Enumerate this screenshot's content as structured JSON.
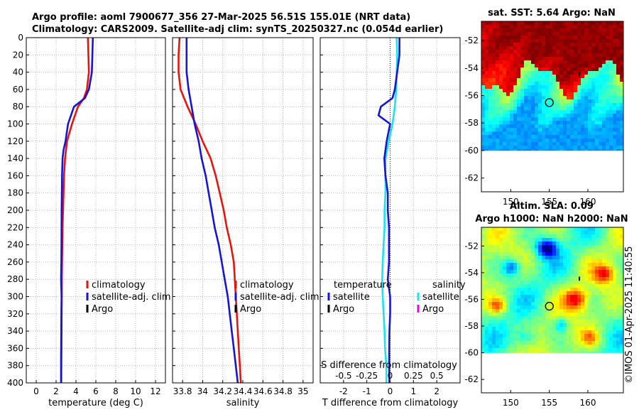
{
  "header": {
    "title_line1": "Argo profile: aoml 7900677_356 27-Mar-2025 56.51S 155.01E (NRT data)",
    "title_line2": "Climatology: CARS2009. Satellite-adj clim: synTS_20250327.nc (0.054d earlier)"
  },
  "watermark": "©IMOS 01-Apr-2025 11:40:55",
  "colors": {
    "climatology": "#e8140c",
    "satellite": "#1414dc",
    "argo": "#000000",
    "s_satellite": "#18e4f0",
    "s_argo": "#ee00ee",
    "grid": "#b4b4cc"
  },
  "chart_data": [
    {
      "id": "temperature",
      "type": "line",
      "xlabel": "temperature (deg C)",
      "xlim": [
        -1,
        13
      ],
      "ylim": [
        0,
        400
      ],
      "x_ticks": [
        "0",
        "2",
        "4",
        "6",
        "8",
        "10",
        "12"
      ],
      "y_ticks": [
        "0",
        "20",
        "40",
        "60",
        "80",
        "100",
        "120",
        "140",
        "160",
        "180",
        "200",
        "220",
        "240",
        "260",
        "280",
        "300",
        "320",
        "340",
        "360",
        "380",
        "400"
      ],
      "legend": [
        "climatology",
        "satellite-adj. clim",
        "Argo"
      ],
      "series": [
        {
          "name": "climatology",
          "depth": [
            0,
            20,
            40,
            60,
            70,
            80,
            100,
            120,
            140,
            160,
            180,
            200,
            220,
            240,
            260,
            280,
            300,
            320,
            340,
            360,
            380,
            400
          ],
          "values": [
            5.2,
            5.25,
            5.3,
            5.1,
            4.8,
            4.2,
            3.6,
            3.1,
            2.9,
            2.8,
            2.75,
            2.7,
            2.65,
            2.62,
            2.6,
            2.58,
            2.57,
            2.56,
            2.55,
            2.54,
            2.53,
            2.52
          ]
        },
        {
          "name": "satellite-adj. clim",
          "depth": [
            0,
            20,
            40,
            60,
            70,
            80,
            100,
            120,
            130,
            140,
            160,
            180,
            200,
            220,
            240,
            260,
            280,
            300,
            320,
            340,
            360,
            380,
            400
          ],
          "values": [
            5.7,
            5.65,
            5.6,
            5.3,
            4.9,
            3.8,
            3.2,
            2.95,
            2.75,
            2.65,
            2.6,
            2.58,
            2.56,
            2.55,
            2.54,
            2.53,
            2.5,
            2.55,
            2.53,
            2.52,
            2.51,
            2.5,
            2.5
          ]
        }
      ]
    },
    {
      "id": "salinity",
      "type": "line",
      "xlabel": "salinity",
      "xlim": [
        33.7,
        35.1
      ],
      "ylim": [
        0,
        400
      ],
      "x_ticks": [
        "33.8",
        "34",
        "34.2",
        "34.4",
        "34.6",
        "34.8",
        "35"
      ],
      "x_tick_values": [
        33.8,
        34.0,
        34.2,
        34.4,
        34.6,
        34.8,
        35.0
      ],
      "legend": [
        "climatology",
        "satellite-adj. clim",
        "Argo"
      ],
      "series": [
        {
          "name": "climatology",
          "depth": [
            0,
            20,
            40,
            60,
            80,
            100,
            120,
            140,
            160,
            180,
            200,
            220,
            240,
            260,
            280,
            300,
            320,
            340,
            360,
            380,
            400
          ],
          "values": [
            33.77,
            33.76,
            33.76,
            33.78,
            33.85,
            33.93,
            34.0,
            34.08,
            34.13,
            34.17,
            34.21,
            34.24,
            34.28,
            34.31,
            34.32,
            34.33,
            34.34,
            34.35,
            34.36,
            34.37,
            34.38
          ]
        },
        {
          "name": "satellite-adj. clim",
          "depth": [
            0,
            20,
            40,
            60,
            80,
            100,
            120,
            140,
            160,
            180,
            200,
            220,
            240,
            260,
            280,
            300,
            320,
            340,
            360,
            380,
            400
          ],
          "values": [
            33.84,
            33.84,
            33.84,
            33.86,
            33.89,
            33.92,
            33.96,
            33.99,
            34.03,
            34.06,
            34.09,
            34.12,
            34.16,
            34.19,
            34.22,
            34.25,
            34.27,
            34.29,
            34.31,
            34.33,
            34.35
          ]
        }
      ]
    },
    {
      "id": "difference",
      "type": "line",
      "xlabel": "T difference from climatology",
      "top_axis_label": "S difference from climatology",
      "xlim": [
        -3,
        3
      ],
      "ylim": [
        0,
        400
      ],
      "x_ticks": [
        "-2",
        "-1",
        "0",
        "1",
        "2"
      ],
      "x_tick_values": [
        -2,
        -1,
        0,
        1,
        2
      ],
      "top_ticks": [
        "-0.5",
        "-0.25",
        "0",
        "0.25",
        "0.5"
      ],
      "top_tick_values": [
        -0.5,
        -0.25,
        0,
        0.25,
        0.5
      ],
      "legend_temperature_title": "temperature",
      "legend_salinity_title": "salinity",
      "legend_temperature": [
        "satellite",
        "Argo"
      ],
      "legend_salinity": [
        "satellite",
        "Argo"
      ],
      "series": [
        {
          "name": "T satellite",
          "depth": [
            0,
            20,
            40,
            60,
            70,
            80,
            90,
            100,
            120,
            140,
            160,
            180,
            200,
            220,
            240,
            260,
            280,
            300,
            320,
            340,
            360,
            380,
            400
          ],
          "values": [
            0.4,
            0.4,
            0.3,
            0.2,
            0.1,
            -0.4,
            -0.5,
            0.0,
            -0.15,
            -0.25,
            -0.2,
            -0.1,
            -0.1,
            -0.05,
            -0.05,
            -0.05,
            -0.1,
            0.0,
            0.0,
            -0.03,
            -0.04,
            -0.04,
            -0.03
          ]
        },
        {
          "name": "S satellite",
          "depth": [
            0,
            20,
            40,
            60,
            80,
            100,
            120,
            140,
            160,
            180,
            200,
            220,
            240,
            260,
            280,
            300,
            320,
            340,
            360,
            380,
            400
          ],
          "values": [
            0.07,
            0.075,
            0.07,
            0.065,
            0.05,
            0.025,
            -0.015,
            -0.05,
            -0.05,
            -0.05,
            -0.06,
            -0.06,
            -0.07,
            -0.08,
            -0.085,
            -0.08,
            -0.07,
            -0.06,
            -0.055,
            -0.04,
            -0.04
          ]
        }
      ]
    },
    {
      "id": "sst_map",
      "type": "heatmap",
      "title": "sat. SST: 5.64 Argo: NaN",
      "x_ticks": [
        "150",
        "155",
        "160"
      ],
      "x_tick_values": [
        150,
        155,
        160
      ],
      "y_ticks": [
        "-52",
        "-54",
        "-56",
        "-58",
        "-60",
        "-62"
      ],
      "y_tick_values": [
        -52,
        -54,
        -56,
        -58,
        -60,
        -62
      ],
      "xlim": [
        146.2,
        164.6
      ],
      "ylim": [
        -63,
        -50.6
      ],
      "data_bottom": -60,
      "float_position": [
        155.01,
        -56.51
      ],
      "float_track": [
        [
          158.9,
          -54.3
        ],
        [
          158.9,
          -54.6
        ]
      ]
    },
    {
      "id": "sla_map",
      "type": "heatmap",
      "title_line1": "Altim. SLA: 0.09",
      "title_line2": "Argo h1000: NaN h2000: NaN",
      "x_ticks": [
        "150",
        "155",
        "160"
      ],
      "x_tick_values": [
        150,
        155,
        160
      ],
      "y_ticks": [
        "-52",
        "-54",
        "-56",
        "-58",
        "-60",
        "-62"
      ],
      "y_tick_values": [
        -52,
        -54,
        -56,
        -58,
        -60,
        -62
      ],
      "xlim": [
        146.2,
        164.6
      ],
      "ylim": [
        -63,
        -50.6
      ],
      "data_bottom": -60,
      "float_position": [
        155.01,
        -56.51
      ],
      "float_track": [
        [
          158.9,
          -54.3
        ],
        [
          158.9,
          -54.6
        ]
      ]
    }
  ]
}
